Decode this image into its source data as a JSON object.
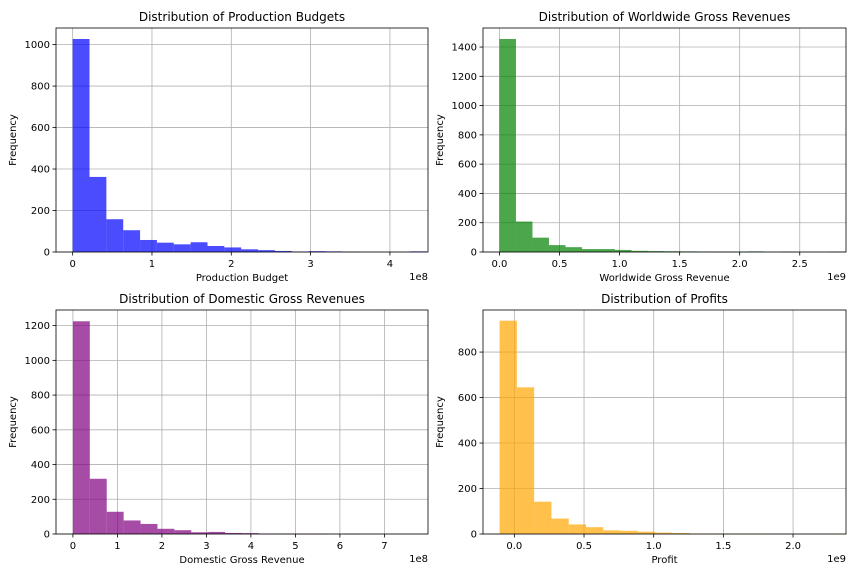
{
  "chart_data": [
    {
      "type": "bar",
      "title": "Distribution of Production Budgets",
      "xlabel": "Production Budget",
      "ylabel": "Frequency",
      "x_offset_text": "1e8",
      "color": "#0000ff",
      "alpha": 0.7,
      "grid": true,
      "xlim": [
        -0.21,
        4.48
      ],
      "ylim": [
        0,
        1080
      ],
      "xticks": [
        {
          "value": 0,
          "label": "0"
        },
        {
          "value": 1,
          "label": "1"
        },
        {
          "value": 2,
          "label": "2"
        },
        {
          "value": 3,
          "label": "3"
        },
        {
          "value": 4,
          "label": "4"
        }
      ],
      "yticks": [
        {
          "value": 0,
          "label": "0"
        },
        {
          "value": 200,
          "label": "200"
        },
        {
          "value": 400,
          "label": "400"
        },
        {
          "value": 600,
          "label": "600"
        },
        {
          "value": 800,
          "label": "800"
        },
        {
          "value": 1000,
          "label": "1000"
        }
      ],
      "bin_start": 0.0,
      "bin_width": 0.2125,
      "values": [
        1027,
        362,
        158,
        105,
        58,
        45,
        37,
        47,
        29,
        22,
        13,
        9,
        5,
        2,
        4,
        3,
        1,
        0,
        0,
        0,
        3
      ]
    },
    {
      "type": "bar",
      "title": "Distribution of Worldwide Gross Revenues",
      "xlabel": "Worldwide Gross Revenue",
      "ylabel": "Frequency",
      "x_offset_text": "1e9",
      "color": "#008000",
      "alpha": 0.7,
      "grid": true,
      "xlim": [
        -0.137,
        2.885
      ],
      "ylim": [
        0,
        1530
      ],
      "xticks": [
        {
          "value": 0,
          "label": "0.0"
        },
        {
          "value": 0.5,
          "label": "0.5"
        },
        {
          "value": 1.0,
          "label": "1.0"
        },
        {
          "value": 1.5,
          "label": "1.5"
        },
        {
          "value": 2.0,
          "label": "2.0"
        },
        {
          "value": 2.5,
          "label": "2.5"
        }
      ],
      "yticks": [
        {
          "value": 0,
          "label": "0"
        },
        {
          "value": 200,
          "label": "200"
        },
        {
          "value": 400,
          "label": "400"
        },
        {
          "value": 600,
          "label": "600"
        },
        {
          "value": 800,
          "label": "800"
        },
        {
          "value": 1000,
          "label": "1000"
        },
        {
          "value": 1200,
          "label": "1200"
        },
        {
          "value": 1400,
          "label": "1400"
        }
      ],
      "bin_start": 0.0,
      "bin_width": 0.1374,
      "values": [
        1455,
        208,
        98,
        47,
        33,
        20,
        20,
        14,
        8,
        6,
        5,
        4,
        3,
        1,
        1,
        4,
        0,
        1,
        0,
        0,
        2
      ]
    },
    {
      "type": "bar",
      "title": "Distribution of Domestic Gross Revenues",
      "xlabel": "Domestic Gross Revenue",
      "ylabel": "Frequency",
      "x_offset_text": "1e8",
      "color": "#800080",
      "alpha": 0.7,
      "grid": true,
      "xlim": [
        -0.38,
        7.98
      ],
      "ylim": [
        0,
        1290
      ],
      "xticks": [
        {
          "value": 0,
          "label": "0"
        },
        {
          "value": 1,
          "label": "1"
        },
        {
          "value": 2,
          "label": "2"
        },
        {
          "value": 3,
          "label": "3"
        },
        {
          "value": 4,
          "label": "4"
        },
        {
          "value": 5,
          "label": "5"
        },
        {
          "value": 6,
          "label": "6"
        },
        {
          "value": 7,
          "label": "7"
        }
      ],
      "yticks": [
        {
          "value": 0,
          "label": "0"
        },
        {
          "value": 200,
          "label": "200"
        },
        {
          "value": 400,
          "label": "400"
        },
        {
          "value": 600,
          "label": "600"
        },
        {
          "value": 800,
          "label": "800"
        },
        {
          "value": 1000,
          "label": "1000"
        },
        {
          "value": 1200,
          "label": "1200"
        }
      ],
      "bin_start": 0.0,
      "bin_width": 0.38,
      "values": [
        1225,
        318,
        128,
        78,
        58,
        30,
        22,
        10,
        12,
        6,
        5,
        2,
        2,
        1,
        1,
        0,
        1,
        0,
        0,
        0
      ]
    },
    {
      "type": "bar",
      "title": "Distribution of Profits",
      "xlabel": "Profit",
      "ylabel": "Frequency",
      "x_offset_text": "1e9",
      "color": "#ffa500",
      "alpha": 0.7,
      "grid": true,
      "xlim": [
        -0.225,
        2.38
      ],
      "ylim": [
        0,
        985
      ],
      "xticks": [
        {
          "value": 0,
          "label": "0.0"
        },
        {
          "value": 0.5,
          "label": "0.5"
        },
        {
          "value": 1.0,
          "label": "1.0"
        },
        {
          "value": 1.5,
          "label": "1.5"
        },
        {
          "value": 2.0,
          "label": "2.0"
        }
      ],
      "yticks": [
        {
          "value": 0,
          "label": "0"
        },
        {
          "value": 200,
          "label": "200"
        },
        {
          "value": 400,
          "label": "400"
        },
        {
          "value": 600,
          "label": "600"
        },
        {
          "value": 800,
          "label": "800"
        }
      ],
      "bin_start": -0.106,
      "bin_width": 0.124,
      "values": [
        938,
        645,
        142,
        68,
        42,
        30,
        16,
        14,
        10,
        6,
        4,
        2,
        2,
        1,
        1,
        1,
        0,
        0,
        0,
        1
      ]
    }
  ]
}
